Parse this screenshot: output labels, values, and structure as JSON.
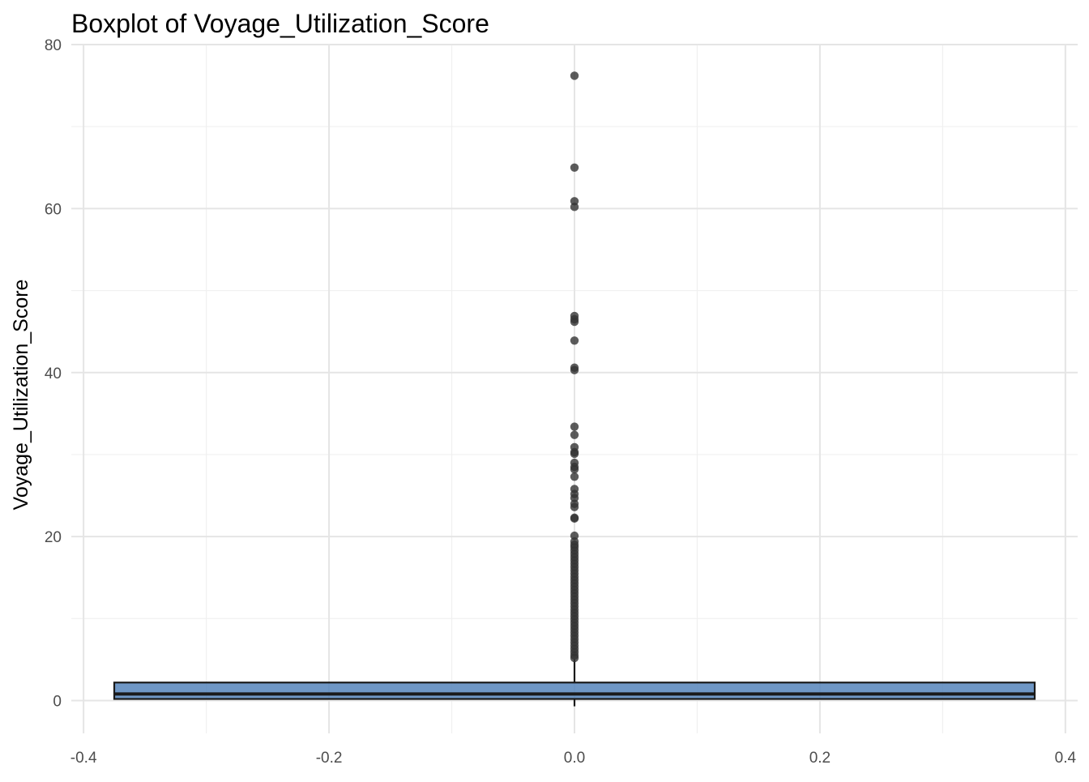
{
  "chart_data": {
    "type": "boxplot",
    "title": "Boxplot of Voyage_Utilization_Score",
    "xlabel": "",
    "ylabel": "Voyage_Utilization_Score",
    "xlim": [
      -0.41,
      0.41
    ],
    "ylim": [
      -4,
      80
    ],
    "x_ticks": [
      -0.4,
      -0.2,
      0.0,
      0.2,
      0.4
    ],
    "x_tick_labels": [
      "-0.4",
      "-0.2",
      "0.0",
      "0.2",
      "0.4"
    ],
    "y_ticks": [
      0,
      20,
      40,
      60,
      80
    ],
    "y_tick_labels": [
      "0",
      "20",
      "40",
      "60",
      "80"
    ],
    "grid": true,
    "box": {
      "x_center": 0.0,
      "x_left": -0.375,
      "x_right": 0.375,
      "q1": 0.2,
      "median": 0.8,
      "q3": 2.2,
      "whisker_low": -0.7,
      "whisker_high": 5.0
    },
    "outliers": [
      76.2,
      65.0,
      60.9,
      60.2,
      46.9,
      46.5,
      46.2,
      43.9,
      40.6,
      40.3,
      33.4,
      32.4,
      30.9,
      30.3,
      30.1,
      29.0,
      28.5,
      28.2,
      27.3,
      25.8,
      25.2,
      24.7,
      24.0,
      23.6,
      22.3,
      22.2,
      20.1,
      19.4,
      19.0,
      18.7,
      18.3,
      17.9,
      17.5,
      17.1,
      16.7,
      16.3,
      15.9,
      15.5,
      15.1,
      14.7,
      14.3,
      13.9,
      13.5,
      13.1,
      12.7,
      12.3,
      11.9,
      11.5,
      11.1,
      10.7,
      10.3,
      9.9,
      9.5,
      9.1,
      8.7,
      8.3,
      7.9,
      7.5,
      7.1,
      6.7,
      6.3,
      5.9,
      5.5,
      5.2
    ],
    "colors": {
      "box_fill": "#4f80b8",
      "box_stroke": "#1a1a1a",
      "point": "#333333",
      "grid_major": "#e5e5e5",
      "grid_minor": "#f0f0f0"
    }
  }
}
